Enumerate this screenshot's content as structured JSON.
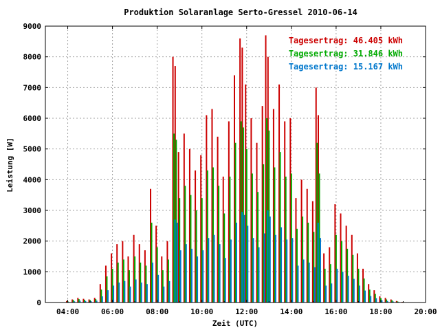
{
  "chart_data": {
    "type": "bar",
    "title": "Produktion Solaranlage Serto-Gressel 2010-06-14",
    "xlabel": "Zeit (UTC)",
    "ylabel": "Leistung [W]",
    "x_unit": "hours UTC",
    "xlim": [
      3,
      20
    ],
    "ylim": [
      0,
      9000
    ],
    "x_tick_labels": [
      "04:00",
      "06:00",
      "08:00",
      "10:00",
      "12:00",
      "14:00",
      "16:00",
      "18:00",
      "20:00"
    ],
    "y_tick_labels": [
      "0",
      "1000",
      "2000",
      "3000",
      "4000",
      "5000",
      "6000",
      "7000",
      "8000",
      "9000"
    ],
    "grid": true,
    "legend_placement": "top-right",
    "legend": [
      {
        "label": "Tagesertrag: 46.405 kWh",
        "color": "#cc0000"
      },
      {
        "label": "Tagesertrag: 31.846 kWh",
        "color": "#00aa00"
      },
      {
        "label": "Tagesertrag: 15.167 kWh",
        "color": "#0077cc"
      }
    ],
    "series": [
      {
        "color": "#cc0000",
        "x": [
          4.0,
          4.25,
          4.5,
          4.75,
          5.0,
          5.25,
          5.5,
          5.75,
          6.0,
          6.25,
          6.5,
          6.75,
          7.0,
          7.25,
          7.5,
          7.75,
          8.0,
          8.25,
          8.5,
          8.75,
          8.85,
          9.0,
          9.25,
          9.5,
          9.75,
          10.0,
          10.25,
          10.5,
          10.75,
          11.0,
          11.25,
          11.5,
          11.75,
          11.85,
          12.0,
          12.25,
          12.5,
          12.75,
          12.9,
          13.0,
          13.25,
          13.5,
          13.75,
          14.0,
          14.25,
          14.5,
          14.75,
          15.0,
          15.15,
          15.25,
          15.5,
          15.75,
          16.0,
          16.25,
          16.5,
          16.75,
          17.0,
          17.25,
          17.5,
          17.75,
          18.0,
          18.25,
          18.5,
          18.75,
          19.0
        ],
        "values": [
          50,
          100,
          150,
          120,
          100,
          150,
          600,
          1200,
          1600,
          1900,
          2000,
          1500,
          2200,
          1900,
          1700,
          3700,
          2500,
          1500,
          2000,
          8000,
          7700,
          4900,
          5500,
          5000,
          4300,
          4800,
          6100,
          6300,
          5400,
          4100,
          5900,
          7400,
          8600,
          8300,
          7100,
          6000,
          5200,
          6400,
          8700,
          8000,
          6300,
          7100,
          5900,
          6000,
          3400,
          4000,
          3700,
          3300,
          7000,
          6100,
          1600,
          1800,
          3200,
          2900,
          2500,
          2200,
          1600,
          1100,
          600,
          400,
          200,
          150,
          100,
          50,
          20
        ]
      },
      {
        "color": "#00aa00",
        "x": [
          4.0,
          4.25,
          4.5,
          4.75,
          5.0,
          5.25,
          5.5,
          5.75,
          6.0,
          6.25,
          6.5,
          6.75,
          7.0,
          7.25,
          7.5,
          7.75,
          8.0,
          8.25,
          8.5,
          8.75,
          8.85,
          9.0,
          9.25,
          9.5,
          9.75,
          10.0,
          10.25,
          10.5,
          10.75,
          11.0,
          11.25,
          11.5,
          11.75,
          11.85,
          12.0,
          12.25,
          12.5,
          12.75,
          12.9,
          13.0,
          13.25,
          13.5,
          13.75,
          14.0,
          14.25,
          14.5,
          14.75,
          15.0,
          15.15,
          15.25,
          15.5,
          15.75,
          16.0,
          16.25,
          16.5,
          16.75,
          17.0,
          17.25,
          17.5,
          17.75,
          18.0,
          18.25,
          18.5,
          18.75,
          19.0
        ],
        "values": [
          40,
          80,
          110,
          90,
          80,
          110,
          420,
          850,
          1100,
          1300,
          1400,
          1050,
          1500,
          1300,
          1200,
          2600,
          1800,
          1050,
          1400,
          5500,
          5300,
          3400,
          3800,
          3500,
          3000,
          3400,
          4300,
          4400,
          3800,
          2900,
          4100,
          5200,
          5900,
          5700,
          5000,
          4200,
          3600,
          4500,
          6000,
          5600,
          4400,
          4900,
          4100,
          4200,
          2400,
          2800,
          2600,
          2300,
          5200,
          4200,
          1100,
          1250,
          2200,
          2000,
          1750,
          1550,
          1100,
          780,
          420,
          280,
          140,
          100,
          70,
          35,
          15
        ]
      },
      {
        "color": "#0077cc",
        "x": [
          4.0,
          4.25,
          4.5,
          4.75,
          5.0,
          5.25,
          5.5,
          5.75,
          6.0,
          6.25,
          6.5,
          6.75,
          7.0,
          7.25,
          7.5,
          7.75,
          8.0,
          8.25,
          8.5,
          8.75,
          8.85,
          9.0,
          9.25,
          9.5,
          9.75,
          10.0,
          10.25,
          10.5,
          10.75,
          11.0,
          11.25,
          11.5,
          11.75,
          11.85,
          12.0,
          12.25,
          12.5,
          12.75,
          12.9,
          13.0,
          13.25,
          13.5,
          13.75,
          14.0,
          14.25,
          14.5,
          14.75,
          15.0,
          15.15,
          15.25,
          15.5,
          15.75,
          16.0,
          16.25,
          16.5,
          16.75,
          17.0,
          17.25,
          17.5,
          17.75,
          18.0,
          18.25,
          18.5,
          18.75,
          19.0
        ],
        "values": [
          20,
          40,
          60,
          50,
          40,
          60,
          200,
          400,
          550,
          650,
          700,
          520,
          750,
          650,
          600,
          1300,
          900,
          520,
          700,
          2700,
          2600,
          1700,
          1900,
          1750,
          1500,
          1700,
          2100,
          2200,
          1900,
          1450,
          2050,
          2600,
          2950,
          2850,
          2500,
          2100,
          1800,
          2250,
          3000,
          2800,
          2200,
          2450,
          2050,
          2100,
          1200,
          1400,
          1300,
          1150,
          2600,
          2100,
          550,
          620,
          1100,
          1000,
          870,
          770,
          550,
          390,
          210,
          140,
          70,
          50,
          35,
          18,
          8
        ]
      }
    ]
  }
}
